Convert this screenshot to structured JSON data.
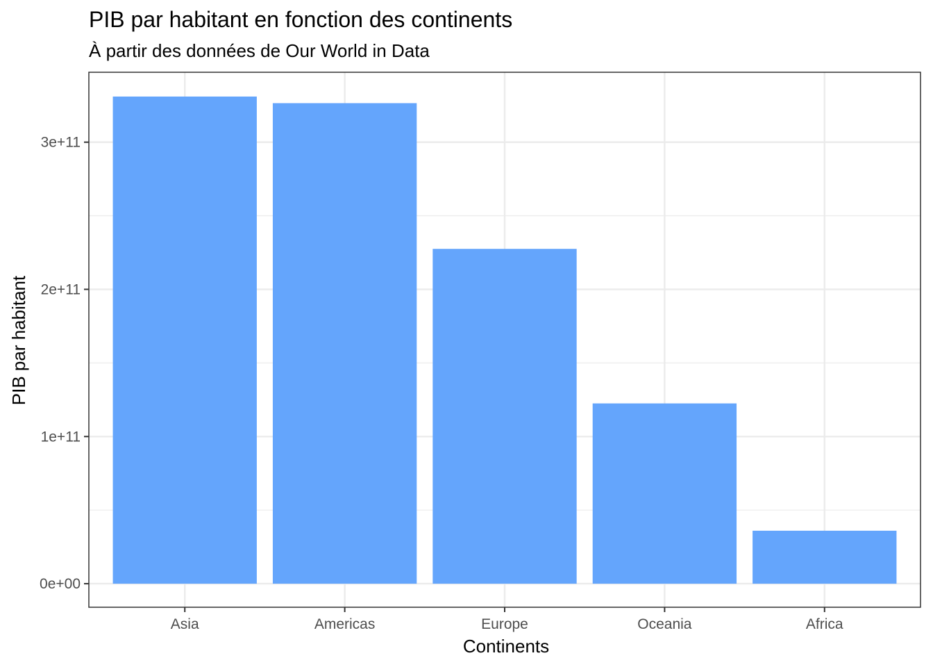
{
  "chart_data": {
    "type": "bar",
    "title": "PIB par habitant en fonction des continents",
    "subtitle": "À partir des données de Our World in Data",
    "xlabel": "Continents",
    "ylabel": "PIB par habitant",
    "categories": [
      "Asia",
      "Americas",
      "Europe",
      "Oceania",
      "Africa"
    ],
    "values": [
      331000000000,
      326500000000,
      227500000000,
      122500000000,
      36000000000
    ],
    "ylim": [
      -16000000000,
      347500000000
    ],
    "yticks": [
      0,
      100000000000,
      200000000000,
      300000000000
    ],
    "ytick_labels": [
      "0e+00",
      "1e+11",
      "2e+11",
      "3e+11"
    ],
    "grid": true,
    "bar_color": "#64A5FC",
    "grid_color": "#EBEBEB",
    "panel_border_color": "#333333"
  }
}
